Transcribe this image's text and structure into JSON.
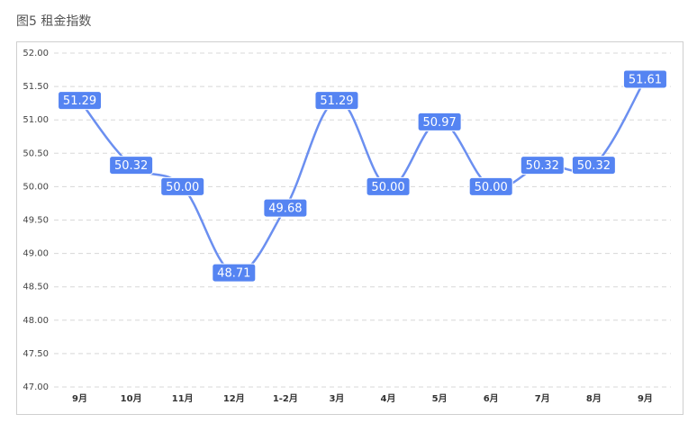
{
  "chart_data": {
    "type": "line",
    "title": "图5 租金指数",
    "categories": [
      "9月",
      "10月",
      "11月",
      "12月",
      "1-2月",
      "3月",
      "4月",
      "5月",
      "6月",
      "7月",
      "8月",
      "9月"
    ],
    "series": [
      {
        "color": "#6b8ff0",
        "values": [
          51.29,
          50.32,
          50.0,
          48.71,
          49.68,
          51.29,
          50.0,
          50.97,
          50.0,
          50.32,
          50.32,
          51.61
        ],
        "value_labels": [
          "51.29",
          "50.32",
          "50.00",
          "48.71",
          "49.68",
          "51.29",
          "50.00",
          "50.97",
          "50.00",
          "50.32",
          "50.32",
          "51.61"
        ]
      }
    ],
    "ylim": [
      47,
      52
    ],
    "yticks": [
      {
        "value": 47,
        "label": "47.00"
      },
      {
        "value": 47.5,
        "label": "47.50"
      },
      {
        "value": 48,
        "label": "48.00"
      },
      {
        "value": 48.5,
        "label": "48.50"
      },
      {
        "value": 49,
        "label": "49.00"
      },
      {
        "value": 49.5,
        "label": "49.50"
      },
      {
        "value": 50,
        "label": "50.00"
      },
      {
        "value": 50.5,
        "label": "50.50"
      },
      {
        "value": 51,
        "label": "51.00"
      },
      {
        "value": 51.5,
        "label": "51.50"
      },
      {
        "value": 52,
        "label": "52.00"
      }
    ],
    "grid": true
  }
}
